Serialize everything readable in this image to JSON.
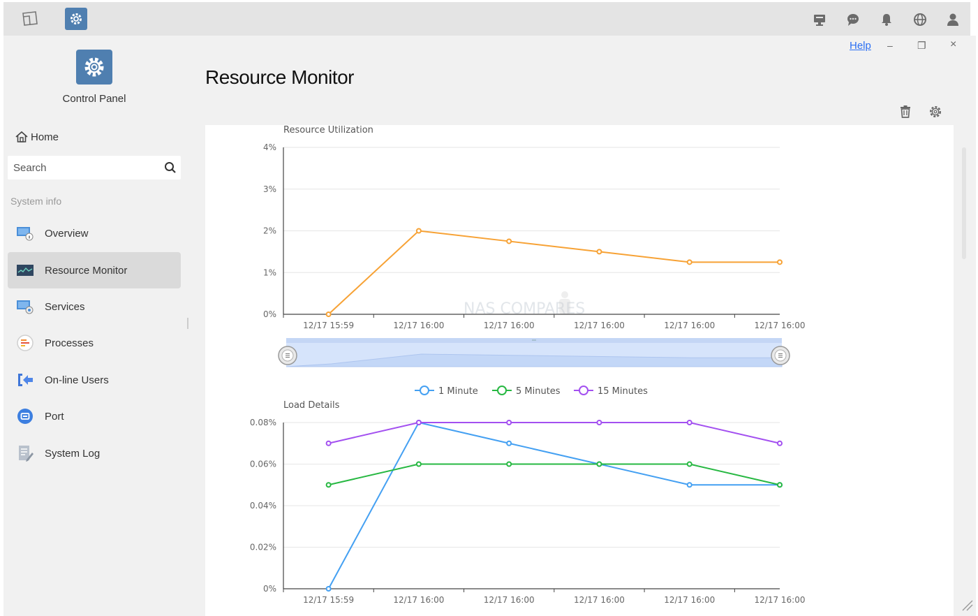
{
  "taskbar": {
    "left_icons": [
      "show-desktop-icon",
      "control-panel-app-icon"
    ],
    "right_icons": [
      "monitor-icon",
      "chat-icon",
      "bell-icon",
      "globe-icon",
      "user-icon"
    ]
  },
  "window": {
    "help_label": "Help",
    "minimize_label": "–",
    "restore_label": "❐",
    "close_label": "×"
  },
  "sidebar": {
    "app_name": "Control Panel",
    "home_label": "Home",
    "search_placeholder": "Search",
    "section_label": "System info",
    "items": [
      {
        "label": "Overview",
        "icon": "overview-icon"
      },
      {
        "label": "Resource Monitor",
        "icon": "resource-monitor-icon",
        "active": true
      },
      {
        "label": "Services",
        "icon": "services-icon"
      },
      {
        "label": "Processes",
        "icon": "processes-icon"
      },
      {
        "label": "On-line Users",
        "icon": "online-users-icon"
      },
      {
        "label": "Port",
        "icon": "port-icon"
      },
      {
        "label": "System Log",
        "icon": "system-log-icon"
      }
    ]
  },
  "main": {
    "title": "Resource Monitor",
    "tools": [
      "trash-icon",
      "settings-gear-icon"
    ],
    "watermark": "NAS COMPARES"
  },
  "colors": {
    "orange": "#f7a235",
    "blue": "#44a0f2",
    "green": "#27b842",
    "purple": "#a350f0",
    "zoom_fill": "#d6e4fb"
  },
  "chart_data": [
    {
      "type": "line",
      "title": "Resource Utilization",
      "x": [
        "12/17 15:59",
        "12/17 16:00",
        "12/17 16:00",
        "12/17 16:00",
        "12/17 16:00",
        "12/17 16:00"
      ],
      "series": [
        {
          "values": [
            0,
            2.0,
            1.75,
            1.5,
            1.25,
            1.25
          ],
          "color": "#f7a235"
        }
      ],
      "yticks": [
        "0%",
        "1%",
        "2%",
        "3%",
        "4%"
      ],
      "ylim": [
        0,
        4
      ],
      "grid": true
    },
    {
      "type": "line",
      "title": "Load Details",
      "x": [
        "12/17 15:59",
        "12/17 16:00",
        "12/17 16:00",
        "12/17 16:00",
        "12/17 16:00",
        "12/17 16:00"
      ],
      "series": [
        {
          "name": "1 Minute",
          "values": [
            0,
            0.08,
            0.07,
            0.06,
            0.05,
            0.05
          ],
          "color": "#44a0f2"
        },
        {
          "name": "5 Minutes",
          "values": [
            0.05,
            0.06,
            0.06,
            0.06,
            0.06,
            0.05
          ],
          "color": "#27b842"
        },
        {
          "name": "15 Minutes",
          "values": [
            0.07,
            0.08,
            0.08,
            0.08,
            0.08,
            0.07
          ],
          "color": "#a350f0"
        }
      ],
      "yticks": [
        "0%",
        "0.02%",
        "0.04%",
        "0.06%",
        "0.08%"
      ],
      "ylim": [
        0,
        0.08
      ],
      "legend": "top-center",
      "grid": true
    }
  ]
}
